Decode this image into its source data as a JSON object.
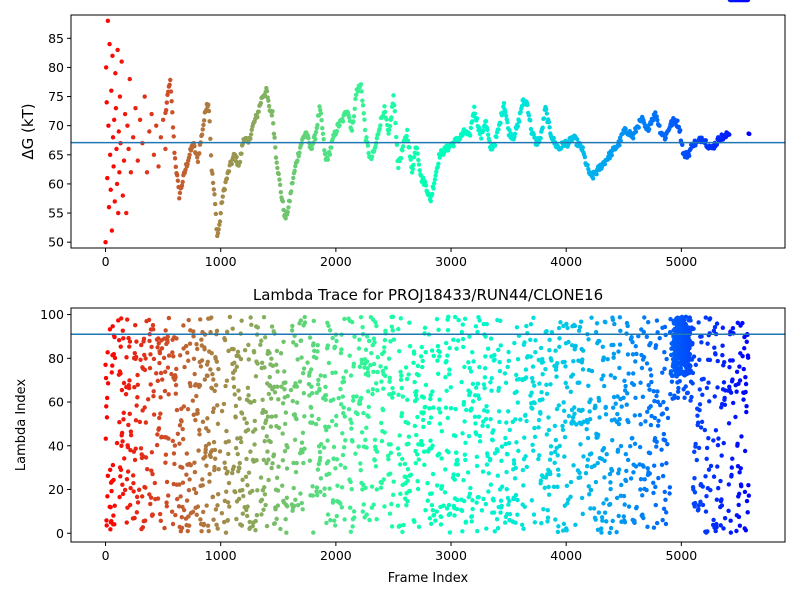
{
  "chart_data": [
    {
      "type": "scatter",
      "title": "",
      "xlabel": "",
      "ylabel": "ΔG (kT)",
      "xlim": [
        -300,
        5900
      ],
      "ylim": [
        49,
        89
      ],
      "x_ticks": [
        0,
        1000,
        2000,
        3000,
        4000,
        5000
      ],
      "y_ticks": [
        50,
        55,
        60,
        65,
        70,
        75,
        80,
        85
      ],
      "x_tick_labels": [
        "0",
        "1000",
        "2000",
        "3000",
        "4000",
        "5000"
      ],
      "y_tick_labels": [
        "50",
        "55",
        "60",
        "65",
        "70",
        "75",
        "80",
        "85"
      ],
      "reference_line_y": 67.1,
      "reference_line_color": "#1f77b4",
      "colormap": "rainbow (reversed: red at frame 0, violet at last frame)",
      "n_frames": 5600,
      "grid": false,
      "trace_x": [
        0,
        40,
        80,
        120,
        160,
        200,
        260,
        320,
        380,
        440,
        500,
        560,
        580,
        600,
        640,
        700,
        760,
        800,
        840,
        880,
        900,
        920,
        950,
        970,
        990,
        1010,
        1040,
        1080,
        1120,
        1160,
        1200,
        1240,
        1280,
        1320,
        1360,
        1400,
        1420,
        1450,
        1480,
        1520,
        1560,
        1590,
        1620,
        1660,
        1700,
        1740,
        1780,
        1820,
        1860,
        1880,
        1910,
        1940,
        1980,
        2020,
        2060,
        2100,
        2140,
        2180,
        2220,
        2260,
        2300,
        2340,
        2380,
        2420,
        2460,
        2500,
        2520,
        2540,
        2580,
        2620,
        2660,
        2700,
        2740,
        2780,
        2820,
        2860,
        2900,
        2960,
        3020,
        3080,
        3120,
        3160,
        3200,
        3260,
        3300,
        3340,
        3380,
        3420,
        3460,
        3500,
        3540,
        3580,
        3620,
        3660,
        3700,
        3740,
        3780,
        3820,
        3860,
        3900,
        3940,
        3980,
        4020,
        4060,
        4100,
        4140,
        4180,
        4220,
        4260,
        4300,
        4340,
        4380,
        4420,
        4460,
        4500,
        4540,
        4580,
        4620,
        4660,
        4700,
        4740,
        4780,
        4820,
        4860,
        4900,
        4940,
        4980,
        5020,
        5060,
        5100,
        5140,
        5180,
        5220,
        5260,
        5300,
        5340,
        5380,
        5420,
        5460,
        5500,
        5540,
        5580
      ],
      "trace_y": [
        68,
        66,
        70,
        64,
        68,
        72,
        69,
        71,
        70,
        68,
        69,
        78,
        72,
        65,
        58,
        63,
        67,
        64,
        69,
        74,
        73,
        63,
        57,
        51,
        53,
        57,
        60,
        63,
        65,
        63,
        68,
        67,
        70,
        72,
        75,
        76,
        73,
        72,
        65,
        59,
        54,
        56,
        60,
        64,
        67,
        69,
        66,
        68,
        73,
        70,
        64,
        65,
        68,
        70,
        71,
        73,
        69,
        76,
        77,
        68,
        64,
        66,
        70,
        73,
        68,
        75,
        70,
        63,
        66,
        69,
        62,
        67,
        61,
        60,
        57,
        61,
        65,
        66,
        67,
        68,
        69,
        68,
        73,
        68,
        71,
        66,
        67,
        70,
        74,
        69,
        68,
        70,
        74,
        74,
        69,
        67,
        68,
        73,
        69,
        67,
        66,
        67,
        67,
        68,
        67,
        66,
        63,
        61,
        62,
        63,
        64,
        65,
        66,
        67,
        69,
        69,
        68,
        70,
        71,
        69,
        71,
        72,
        69,
        68,
        70,
        71,
        70,
        65,
        65,
        67,
        67,
        68,
        67,
        66,
        67,
        68,
        68,
        69
      ],
      "early_scatter_x": [
        0,
        5,
        10,
        15,
        20,
        25,
        30,
        35,
        40,
        45,
        50,
        55,
        60,
        65,
        70,
        75,
        80,
        85,
        90,
        95,
        100,
        105,
        110,
        115,
        120,
        125,
        130,
        140,
        150,
        160,
        170,
        180,
        190,
        200,
        210,
        220,
        240,
        260,
        280,
        300,
        320,
        340,
        360,
        380,
        400,
        420,
        440,
        460,
        480,
        500,
        520
      ],
      "early_scatter_y": [
        50,
        80,
        74,
        61,
        88,
        70,
        56,
        84,
        65,
        59,
        76,
        52,
        82,
        68,
        63,
        71,
        57,
        79,
        73,
        66,
        60,
        83,
        55,
        69,
        62,
        75,
        67,
        81,
        58,
        64,
        72,
        55,
        70,
        66,
        78,
        62,
        68,
        73,
        64,
        71,
        67,
        75,
        62,
        69,
        72,
        65,
        70,
        63,
        68,
        71,
        66
      ]
    },
    {
      "type": "scatter",
      "title": "Lambda Trace for PROJ18433/RUN44/CLONE16",
      "xlabel": "Frame Index",
      "ylabel": "Lambda Index",
      "xlim": [
        -300,
        5900
      ],
      "ylim": [
        -4,
        103
      ],
      "x_ticks": [
        0,
        1000,
        2000,
        3000,
        4000,
        5000
      ],
      "y_ticks": [
        0,
        20,
        40,
        60,
        80,
        100
      ],
      "x_tick_labels": [
        "0",
        "1000",
        "2000",
        "3000",
        "4000",
        "5000"
      ],
      "y_tick_labels": [
        "0",
        "20",
        "40",
        "60",
        "80",
        "100"
      ],
      "reference_line_y": 91,
      "reference_line_color": "#1f77b4",
      "colormap": "rainbow (reversed: red at frame 0, violet at last frame)",
      "n_frames": 5600,
      "lambda_range": [
        0,
        99
      ],
      "grid": false,
      "dense_band_centers": [
        0,
        60,
        140,
        200,
        260,
        330,
        400,
        470,
        530,
        600,
        660,
        720,
        780,
        830,
        880,
        920,
        960,
        1050,
        1120,
        1170,
        1240,
        1300,
        1370,
        1430,
        1480,
        1560,
        1640,
        1710,
        1790,
        1850,
        1920,
        1990,
        2060,
        2140,
        2220,
        2270,
        2340,
        2410,
        2480,
        2560,
        2620,
        2700,
        2760,
        2830,
        2900,
        2970,
        3040,
        3110,
        3170,
        3230,
        3300,
        3360,
        3420,
        3490,
        3560,
        3640,
        3710,
        3780,
        3850,
        3920,
        3990,
        4060,
        4130,
        4200,
        4270,
        4330,
        4400,
        4460,
        4520,
        4590,
        4660,
        4720,
        4780,
        4850,
        4920,
        4980,
        5040,
        5100,
        5160,
        5230,
        5300,
        5360,
        5430,
        5500,
        5560
      ]
    }
  ]
}
